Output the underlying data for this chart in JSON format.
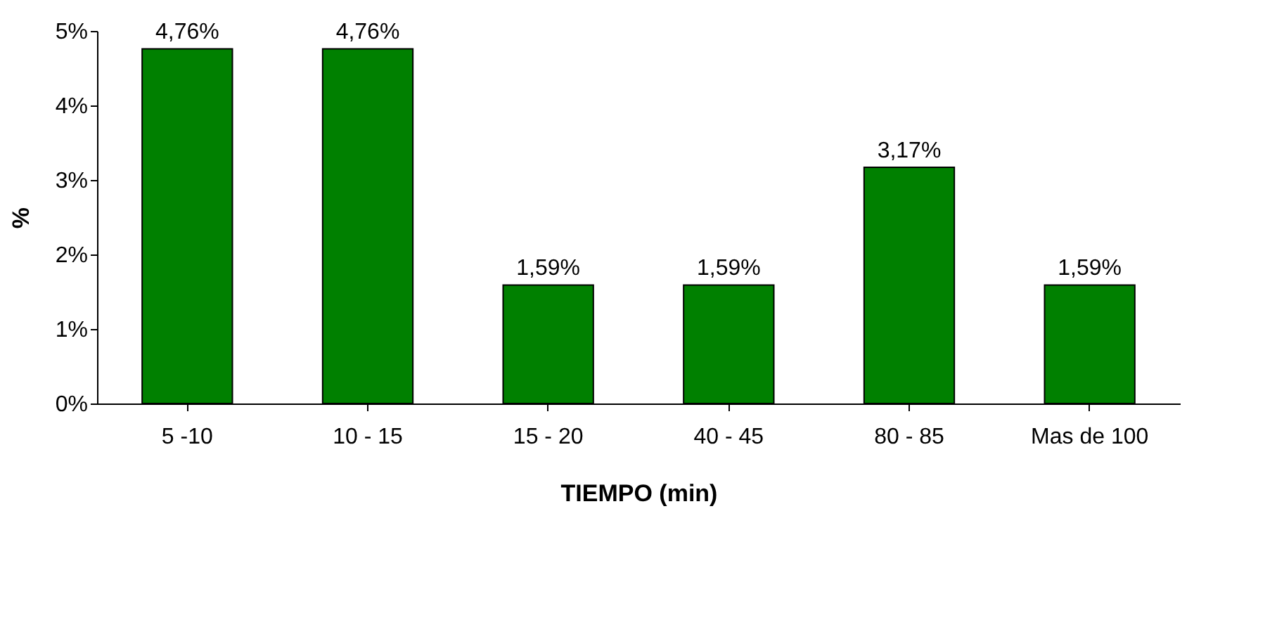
{
  "chart_data": {
    "type": "bar",
    "xlabel": "TIEMPO (min)",
    "ylabel": "%",
    "categories": [
      "5 -10",
      "10 - 15",
      "15 - 20",
      "40 - 45",
      "80 - 85",
      "Mas de 100"
    ],
    "values": [
      4.76,
      4.76,
      1.59,
      1.59,
      3.17,
      1.59
    ],
    "value_labels": [
      "4,76%",
      "4,76%",
      "1,59%",
      "1,59%",
      "3,17%",
      "1,59%"
    ],
    "color": "#008000",
    "ylim": [
      0,
      5
    ],
    "yticks": [
      {
        "value": 0,
        "label": "0%"
      },
      {
        "value": 1,
        "label": "1%"
      },
      {
        "value": 2,
        "label": "2%"
      },
      {
        "value": 3,
        "label": "3%"
      },
      {
        "value": 4,
        "label": "4%"
      },
      {
        "value": 5,
        "label": "5%"
      }
    ],
    "grid": false
  }
}
